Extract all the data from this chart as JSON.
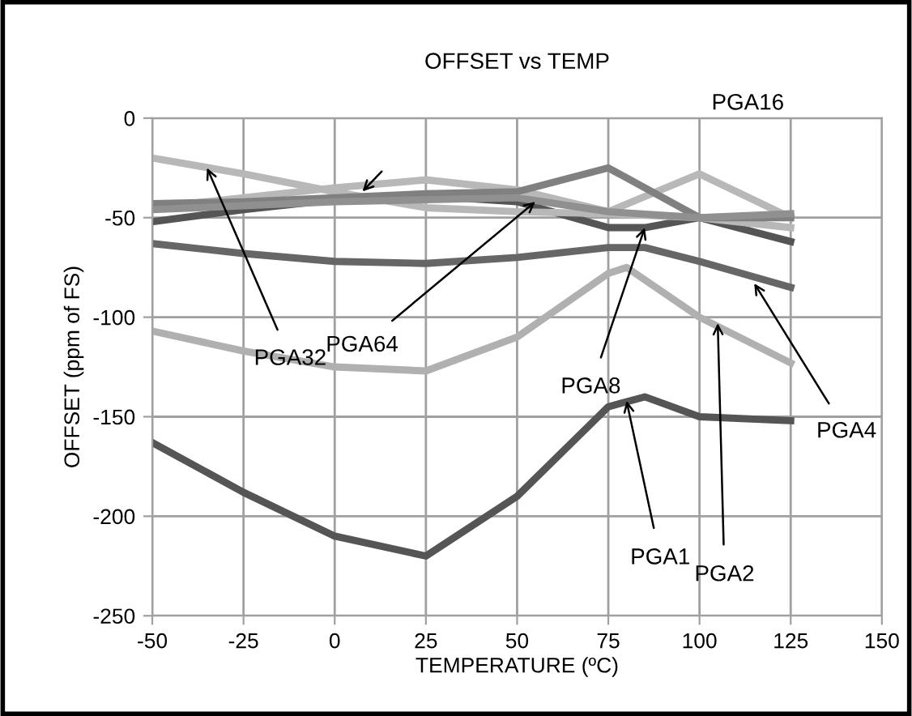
{
  "chart_data": {
    "type": "line",
    "title": "OFFSET vs TEMP",
    "xlabel": "TEMPERATURE (ºC)",
    "ylabel": "OFFSET (ppm of FS)",
    "xlim": [
      -50,
      150
    ],
    "xticks": [
      -50,
      -25,
      0,
      25,
      50,
      75,
      100,
      125,
      150
    ],
    "ylim": [
      -250,
      0
    ],
    "yticks": [
      -250,
      -200,
      -150,
      -100,
      -50,
      0
    ],
    "grid": true,
    "marker": "none",
    "line_style": "solid",
    "series": [
      {
        "color": "#555555",
        "x": [
          -50,
          -25,
          0,
          25,
          50,
          75,
          85,
          100,
          125
        ],
        "values": [
          -163,
          -188,
          -210,
          -220,
          -190,
          -145,
          -140,
          -150,
          -152
        ]
      },
      {
        "color": "#b0b0b0",
        "x": [
          -50,
          -25,
          0,
          25,
          50,
          75,
          80,
          100,
          125
        ],
        "values": [
          -107,
          -117,
          -125,
          -127,
          -110,
          -78,
          -75,
          -100,
          -123
        ]
      },
      {
        "color": "#666666",
        "x": [
          -50,
          -25,
          0,
          25,
          50,
          75,
          85,
          100,
          125
        ],
        "values": [
          -63,
          -68,
          -72,
          -73,
          -70,
          -65,
          -65,
          -72,
          -85
        ]
      },
      {
        "color": "#555555",
        "x": [
          -50,
          -25,
          0,
          25,
          50,
          75,
          85,
          100,
          125
        ],
        "values": [
          -52,
          -46,
          -41,
          -39,
          -42,
          -55,
          -55,
          -50,
          -62
        ]
      },
      {
        "color": "#b8b8b8",
        "x": [
          -50,
          -25,
          0,
          25,
          50,
          75,
          100,
          125
        ],
        "values": [
          -45,
          -40,
          -35,
          -31,
          -36,
          -47,
          -28,
          -50
        ]
      },
      {
        "color": "#b8b8b8",
        "x": [
          -50,
          -25,
          0,
          25,
          50,
          75,
          100,
          125
        ],
        "values": [
          -20,
          -28,
          -37,
          -45,
          -47,
          -48,
          -50,
          -55
        ]
      },
      {
        "color": "#808080",
        "x": [
          -50,
          -25,
          0,
          25,
          50,
          75,
          100,
          125
        ],
        "values": [
          -43,
          -42,
          -40,
          -38,
          -37,
          -25,
          -50,
          -50
        ]
      },
      {
        "color": "#909090",
        "x": [
          -50,
          -25,
          0,
          25,
          50,
          75,
          100,
          125
        ],
        "values": [
          -46,
          -44,
          -42,
          -41,
          -40,
          -47,
          -50,
          -48
        ]
      }
    ],
    "annotations": [
      {
        "text": "PGA32",
        "x": -35,
        "y": -25
      },
      {
        "text": "PGA64",
        "x": 55,
        "y": -42
      },
      {
        "text": "PGA8",
        "x": 85,
        "y": -55
      },
      {
        "text": "PGA4",
        "x": 115,
        "y": -83
      },
      {
        "text": "PGA2",
        "x": 105,
        "y": -103
      },
      {
        "text": "PGA1",
        "x": 80,
        "y": -142
      },
      "PGA16"
    ]
  }
}
